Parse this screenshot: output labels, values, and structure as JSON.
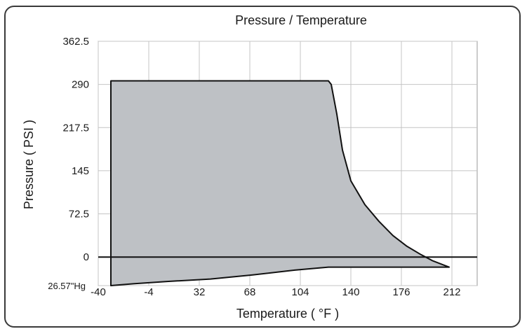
{
  "chart_data": {
    "type": "area",
    "title": "Pressure / Temperature",
    "xlabel": "Temperature ( °F )",
    "ylabel": "Pressure ( PSI )",
    "xlim": [
      -40,
      230
    ],
    "ylim": [
      -48,
      362.5
    ],
    "x_ticks": [
      {
        "value": -40,
        "label": "-40"
      },
      {
        "value": -4,
        "label": "-4"
      },
      {
        "value": 32,
        "label": "32"
      },
      {
        "value": 68,
        "label": "68"
      },
      {
        "value": 104,
        "label": "104"
      },
      {
        "value": 140,
        "label": "140"
      },
      {
        "value": 176,
        "label": "176"
      },
      {
        "value": 212,
        "label": "212"
      }
    ],
    "y_ticks": [
      {
        "value": 362.5,
        "label": "362.5"
      },
      {
        "value": 290,
        "label": "290"
      },
      {
        "value": 217.5,
        "label": "217.5"
      },
      {
        "value": 145,
        "label": "145"
      },
      {
        "value": 72.5,
        "label": "72.5"
      },
      {
        "value": 0,
        "label": "0"
      },
      {
        "value": -48,
        "label": "26.57\"Hg"
      }
    ],
    "vacuum_label": "26.57\"Hg",
    "grid": true,
    "zero_line": 0,
    "operating_envelope": {
      "x": [
        -31,
        -31,
        124,
        126,
        130,
        134,
        140,
        150,
        160,
        170,
        180,
        190,
        198,
        210,
        124,
        100,
        70,
        40,
        10,
        -15,
        -31
      ],
      "y": [
        -48,
        296,
        296,
        290,
        240,
        180,
        128,
        88,
        60,
        36,
        18,
        4,
        -6,
        -17,
        -17,
        -22,
        -30,
        -37,
        -41,
        -45,
        -48
      ]
    },
    "fill_color": "#bec1c5",
    "line_color": "#111111"
  }
}
